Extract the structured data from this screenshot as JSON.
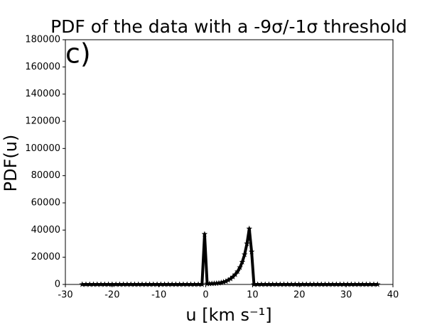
{
  "chart_data": {
    "type": "line",
    "title": "PDF of the data with a -9σ/-1σ threshold",
    "annotation": "c)",
    "xlabel": "u [km s⁻¹]",
    "ylabel": "PDF(u)",
    "xlim": [
      -30,
      40
    ],
    "xticks": [
      -30,
      -20,
      -10,
      0,
      10,
      20,
      30,
      40
    ],
    "ylim": [
      0,
      180000
    ],
    "yticks": [
      0,
      20000,
      40000,
      60000,
      80000,
      100000,
      120000,
      140000,
      160000,
      180000
    ],
    "x": [
      -26.4,
      -25.6,
      -24.8,
      -24,
      -23.2,
      -22.4,
      -21.6,
      -20.8,
      -20,
      -19.2,
      -18.4,
      -17.6,
      -16.8,
      -16,
      -15.2,
      -14.4,
      -13.6,
      -12.8,
      -12,
      -11.2,
      -10.4,
      -9.6,
      -8.8,
      -8,
      -7.2,
      -6.4,
      -5.6,
      -4.8,
      -4,
      -3.2,
      -2.4,
      -1.6,
      -0.8,
      -0.25,
      0.3,
      0.8,
      1.3,
      1.8,
      2.3,
      2.8,
      3.3,
      3.8,
      4.3,
      4.8,
      5.3,
      5.8,
      6.3,
      6.8,
      7.3,
      7.8,
      8.3,
      8.8,
      9.3,
      9.8,
      10.3,
      11.1,
      11.9,
      12.7,
      13.5,
      14.3,
      15.1,
      15.9,
      16.7,
      17.5,
      18.3,
      19.1,
      19.9,
      20.7,
      21.5,
      22.3,
      23.1,
      23.9,
      24.7,
      25.5,
      26.3,
      27.1,
      27.9,
      28.7,
      29.5,
      30.3,
      31.1,
      31.9,
      32.7,
      33.5,
      34.3,
      35.1,
      35.9,
      36.7
    ],
    "series": [
      {
        "color": "#000000",
        "values": [
          0,
          0,
          0,
          0,
          0,
          0,
          0,
          0,
          0,
          0,
          0,
          0,
          0,
          0,
          0,
          0,
          0,
          0,
          0,
          0,
          0,
          0,
          0,
          0,
          0,
          0,
          0,
          0,
          0,
          0,
          0,
          0,
          0,
          37000,
          500,
          500,
          600,
          700,
          800,
          1000,
          1300,
          1800,
          2300,
          3200,
          4200,
          5600,
          7300,
          9500,
          12500,
          16500,
          22000,
          30000,
          41000,
          24000,
          0,
          0,
          0,
          0,
          0,
          0,
          0,
          0,
          0,
          0,
          0,
          0,
          0,
          0,
          0,
          0,
          0,
          0,
          0,
          0,
          0,
          0,
          0,
          0,
          0,
          0,
          0,
          0,
          0,
          0,
          0,
          0,
          0,
          0
        ]
      }
    ]
  }
}
